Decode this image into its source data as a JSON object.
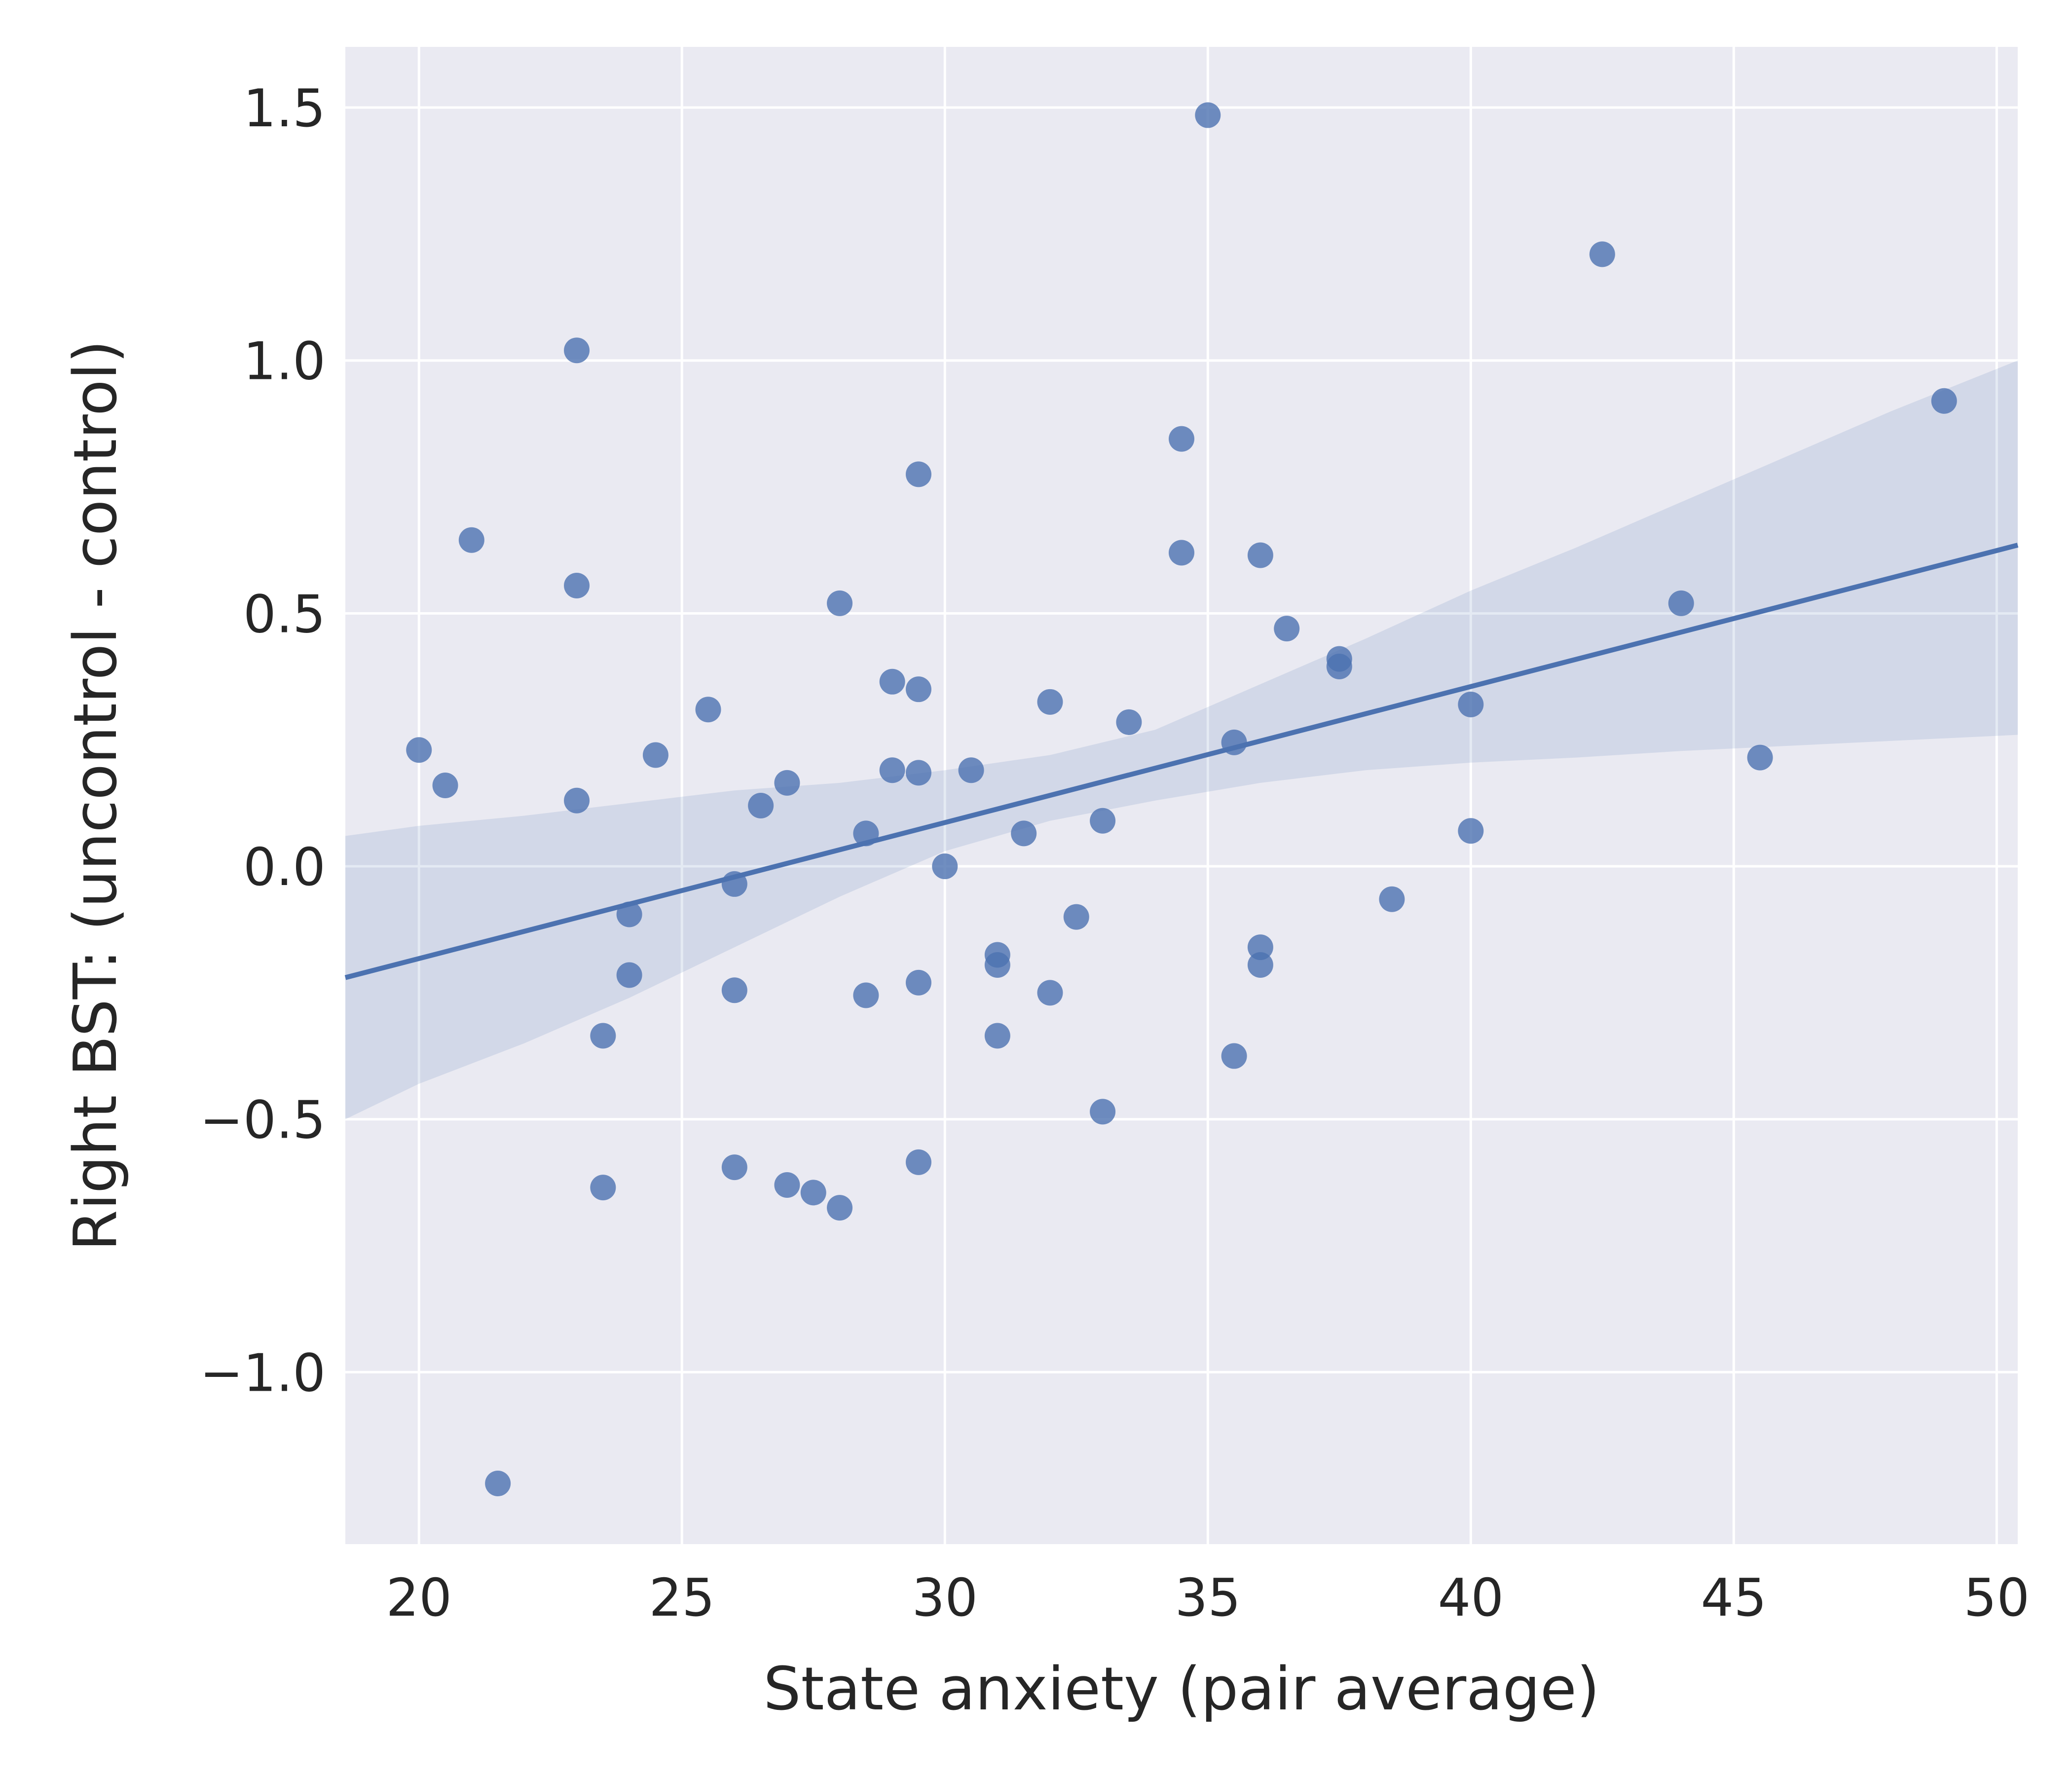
{
  "chart_data": {
    "type": "scatter",
    "title": "",
    "xlabel": "State anxiety (pair average)",
    "ylabel": "Right BST: (uncontrol - control)",
    "xlim": [
      18.6,
      50.4
    ],
    "ylim": [
      -1.34,
      1.62
    ],
    "xticks": [
      20,
      25,
      30,
      35,
      40,
      45,
      50
    ],
    "yticks": [
      -1.0,
      -0.5,
      0.0,
      0.5,
      1.0,
      1.5
    ],
    "ytick_labels": [
      "−1.0",
      "−0.5",
      "0.0",
      "0.5",
      "1.0",
      "1.5"
    ],
    "grid": true,
    "background_color": "#eaeaf2",
    "series_color": "#4c72b0",
    "points": [
      [
        20.0,
        0.23
      ],
      [
        20.5,
        0.16
      ],
      [
        21.0,
        0.645
      ],
      [
        21.5,
        -1.22
      ],
      [
        23.0,
        1.02
      ],
      [
        23.0,
        0.555
      ],
      [
        23.0,
        0.13
      ],
      [
        23.5,
        -0.335
      ],
      [
        23.5,
        -0.635
      ],
      [
        24.0,
        -0.095
      ],
      [
        24.0,
        -0.215
      ],
      [
        24.5,
        0.22
      ],
      [
        25.5,
        0.31
      ],
      [
        26.0,
        -0.035
      ],
      [
        26.0,
        -0.245
      ],
      [
        26.0,
        -0.595
      ],
      [
        26.5,
        0.12
      ],
      [
        27.0,
        0.165
      ],
      [
        27.0,
        -0.63
      ],
      [
        27.5,
        -0.645
      ],
      [
        28.0,
        0.52
      ],
      [
        28.0,
        -0.675
      ],
      [
        28.5,
        0.065
      ],
      [
        28.5,
        -0.255
      ],
      [
        29.0,
        0.365
      ],
      [
        29.0,
        0.19
      ],
      [
        29.5,
        0.775
      ],
      [
        29.5,
        0.35
      ],
      [
        29.5,
        0.185
      ],
      [
        29.5,
        -0.23
      ],
      [
        29.5,
        -0.585
      ],
      [
        30.0,
        0.0
      ],
      [
        30.5,
        0.19
      ],
      [
        31.0,
        -0.175
      ],
      [
        31.0,
        -0.195
      ],
      [
        31.0,
        -0.335
      ],
      [
        31.5,
        0.065
      ],
      [
        32.0,
        0.325
      ],
      [
        32.0,
        -0.25
      ],
      [
        32.5,
        -0.1
      ],
      [
        33.0,
        0.09
      ],
      [
        33.0,
        -0.485
      ],
      [
        33.5,
        0.285
      ],
      [
        34.5,
        0.845
      ],
      [
        34.5,
        0.62
      ],
      [
        35.0,
        1.485
      ],
      [
        35.5,
        0.245
      ],
      [
        35.5,
        -0.375
      ],
      [
        36.0,
        0.615
      ],
      [
        36.0,
        -0.16
      ],
      [
        36.0,
        -0.195
      ],
      [
        36.5,
        0.47
      ],
      [
        37.5,
        0.41
      ],
      [
        37.5,
        0.395
      ],
      [
        38.5,
        -0.065
      ],
      [
        40.0,
        0.32
      ],
      [
        40.0,
        0.07
      ],
      [
        42.5,
        1.21
      ],
      [
        44.0,
        0.52
      ],
      [
        45.5,
        0.215
      ],
      [
        49.0,
        0.92
      ]
    ],
    "regression": {
      "x": [
        18.6,
        50.4
      ],
      "y": [
        -0.22,
        0.635
      ]
    },
    "confidence_band": {
      "x": [
        18.6,
        20,
        22,
        24,
        26,
        28,
        30,
        32,
        34,
        36,
        38,
        40,
        42,
        44,
        46,
        48,
        50.4
      ],
      "lower": [
        -0.5,
        -0.43,
        -0.35,
        -0.26,
        -0.16,
        -0.06,
        0.03,
        0.09,
        0.13,
        0.165,
        0.19,
        0.205,
        0.215,
        0.228,
        0.238,
        0.248,
        0.26
      ],
      "upper": [
        0.06,
        0.08,
        0.1,
        0.125,
        0.15,
        0.165,
        0.19,
        0.22,
        0.27,
        0.36,
        0.45,
        0.545,
        0.63,
        0.72,
        0.81,
        0.9,
        1.0
      ]
    }
  }
}
